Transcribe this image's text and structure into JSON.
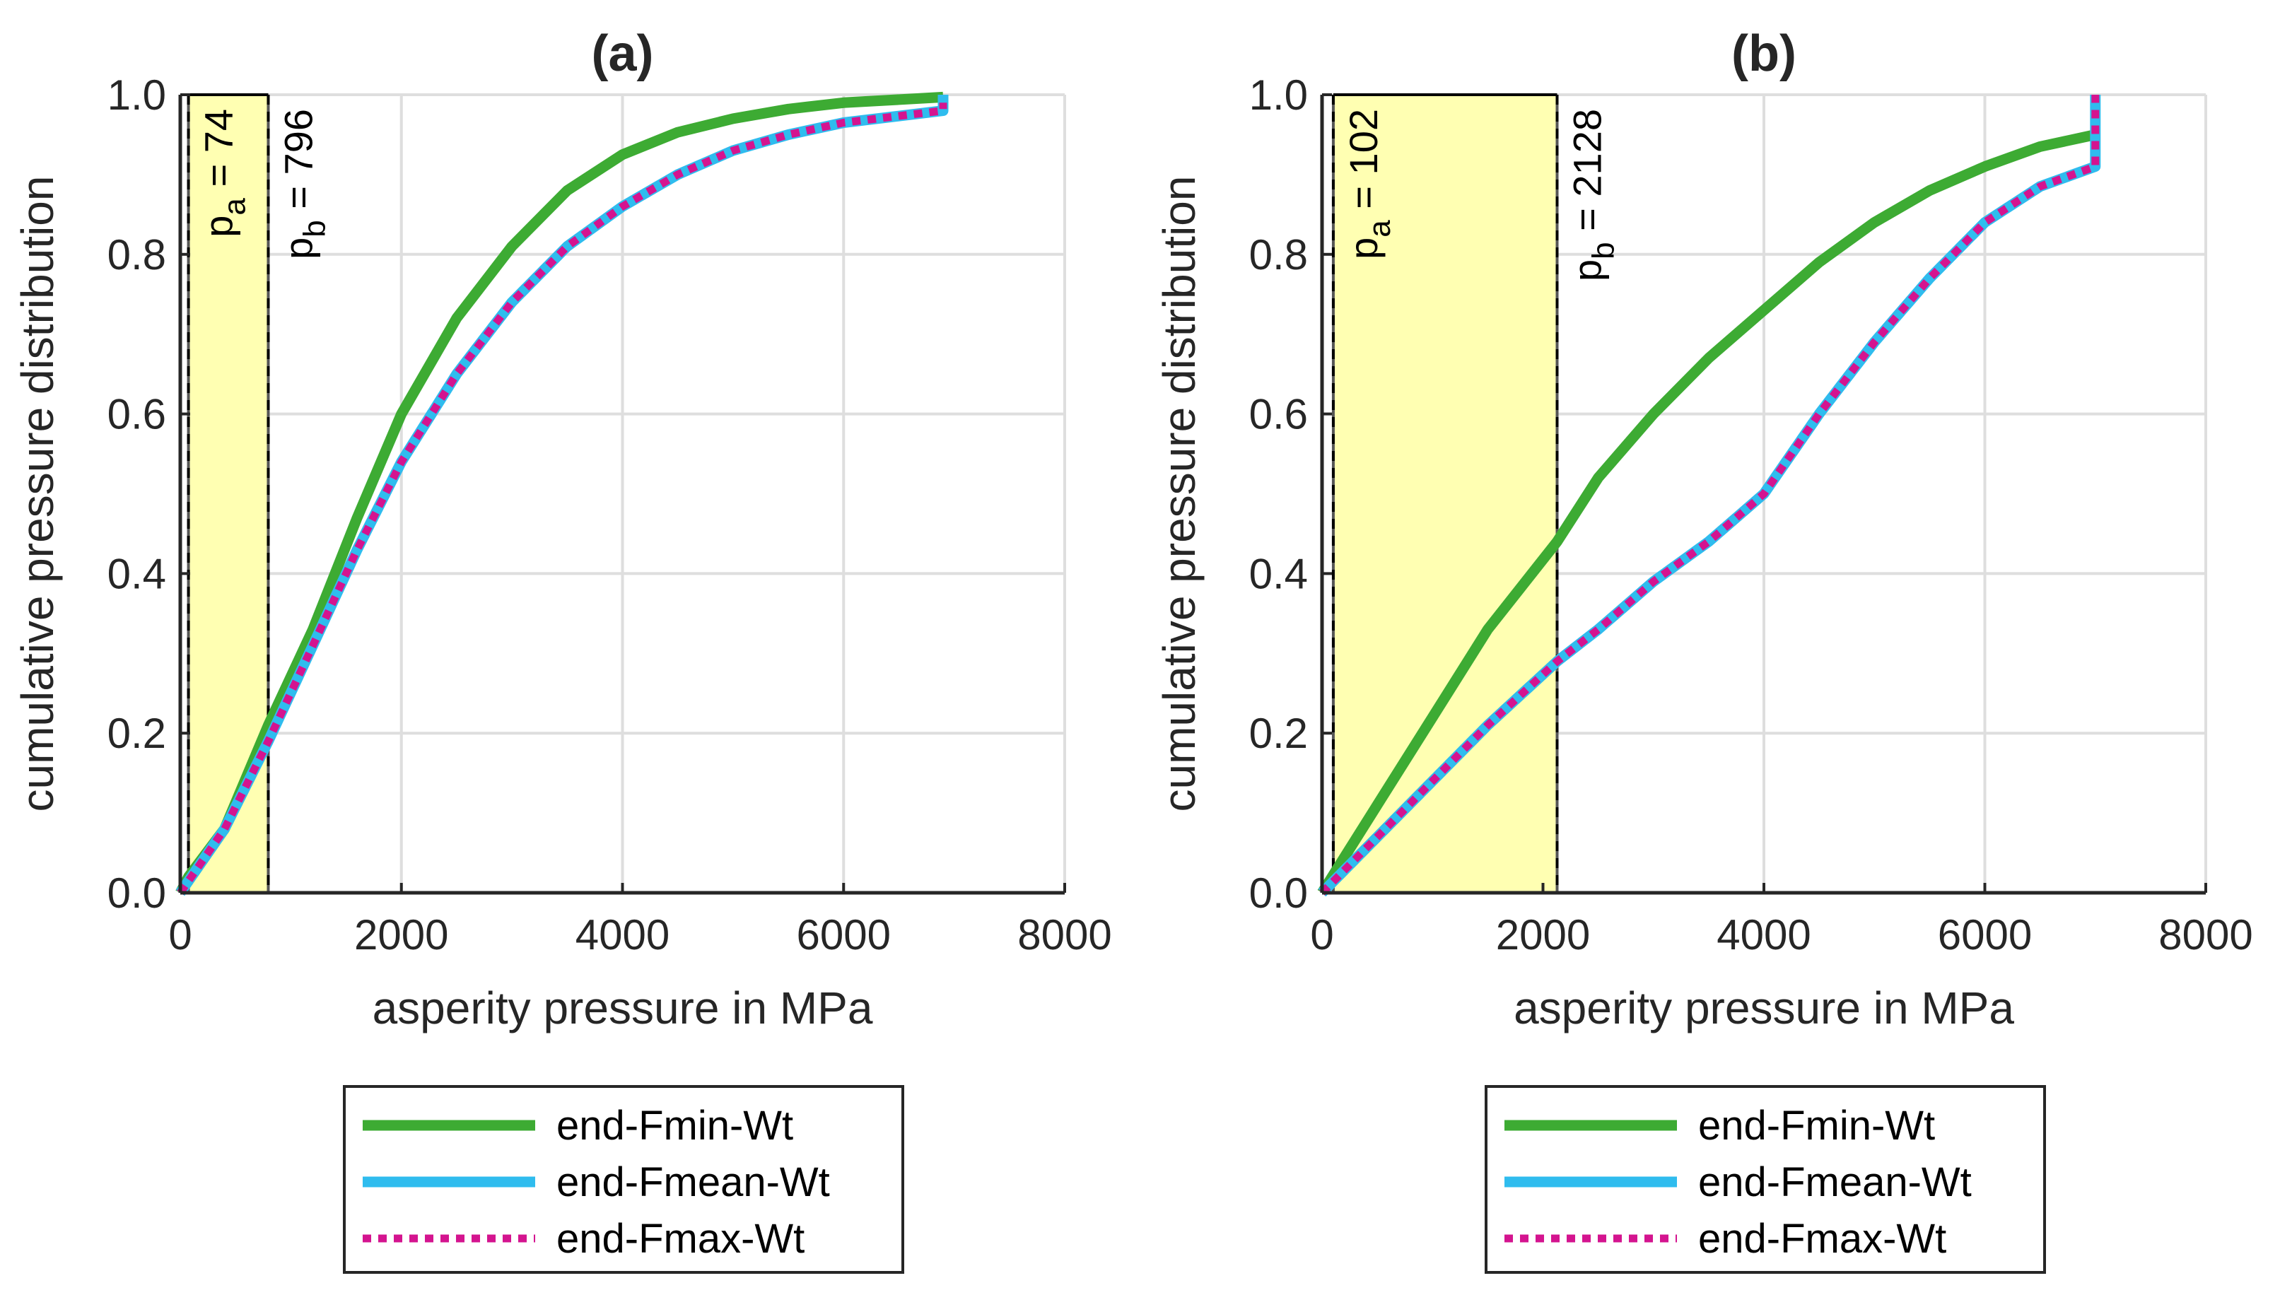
{
  "chart_data": [
    {
      "type": "line",
      "title": "(a)",
      "xlabel": "asperity pressure in MPa",
      "ylabel": "cumulative pressure distribution",
      "xlim": [
        0,
        8000
      ],
      "ylim": [
        0,
        1
      ],
      "xticks": [
        "0",
        "2000",
        "4000",
        "6000",
        "8000"
      ],
      "yticks": [
        "0.0",
        "0.2",
        "0.4",
        "0.6",
        "0.8",
        "1.0"
      ],
      "grid": true,
      "shaded_region": [
        74,
        796
      ],
      "annotations": {
        "pa_sym": "p",
        "pa_sub": "a",
        "pa_text": " = 74",
        "pb_sym": "p",
        "pb_sub": "b",
        "pb_text": " = 796"
      },
      "legend_position": "below",
      "series": [
        {
          "name": "end-Fmin-Wt",
          "color": "#3dab33",
          "style": "solid",
          "x": [
            0,
            74,
            400,
            796,
            1200,
            1600,
            2000,
            2500,
            3000,
            3500,
            4000,
            4500,
            5000,
            5500,
            6000,
            6900
          ],
          "y": [
            0,
            0.02,
            0.08,
            0.21,
            0.33,
            0.47,
            0.6,
            0.72,
            0.81,
            0.88,
            0.925,
            0.953,
            0.97,
            0.982,
            0.99,
            0.997
          ]
        },
        {
          "name": "end-Fmean-Wt",
          "color": "#2fbcee",
          "style": "solid",
          "x": [
            0,
            400,
            796,
            1200,
            1600,
            2000,
            2500,
            3000,
            3500,
            4000,
            4500,
            5000,
            5500,
            6000,
            6900,
            6900
          ],
          "y": [
            0,
            0.08,
            0.19,
            0.31,
            0.43,
            0.54,
            0.65,
            0.74,
            0.81,
            0.86,
            0.9,
            0.93,
            0.95,
            0.965,
            0.98,
            1.0
          ]
        },
        {
          "name": "end-Fmax-Wt",
          "color": "#d4148f",
          "style": "dotted",
          "x": [
            0,
            400,
            796,
            1200,
            1600,
            2000,
            2500,
            3000,
            3500,
            4000,
            4500,
            5000,
            5500,
            6000,
            6900,
            6900
          ],
          "y": [
            0,
            0.08,
            0.19,
            0.31,
            0.43,
            0.54,
            0.65,
            0.74,
            0.81,
            0.86,
            0.9,
            0.93,
            0.95,
            0.965,
            0.98,
            0.99
          ]
        }
      ]
    },
    {
      "type": "line",
      "title": "(b)",
      "xlabel": "asperity pressure in MPa",
      "ylabel": "cumulative pressure distribution",
      "xlim": [
        0,
        8000
      ],
      "ylim": [
        0,
        1
      ],
      "xticks": [
        "0",
        "2000",
        "4000",
        "6000",
        "8000"
      ],
      "yticks": [
        "0.0",
        "0.2",
        "0.4",
        "0.6",
        "0.8",
        "1.0"
      ],
      "grid": true,
      "shaded_region": [
        102,
        2128
      ],
      "annotations": {
        "pa_sym": "p",
        "pa_sub": "a",
        "pa_text": " = 102",
        "pb_sym": "p",
        "pb_sub": "b",
        "pb_text": " = 2128"
      },
      "legend_position": "below",
      "series": [
        {
          "name": "end-Fmin-Wt",
          "color": "#3dab33",
          "style": "solid",
          "x": [
            0,
            500,
            1000,
            1500,
            2128,
            2500,
            3000,
            3500,
            4000,
            4500,
            5000,
            5500,
            6000,
            6500,
            7000
          ],
          "y": [
            0,
            0.11,
            0.22,
            0.33,
            0.44,
            0.52,
            0.6,
            0.67,
            0.73,
            0.79,
            0.84,
            0.88,
            0.91,
            0.935,
            0.95
          ]
        },
        {
          "name": "end-Fmean-Wt",
          "color": "#2fbcee",
          "style": "solid",
          "x": [
            0,
            500,
            1000,
            1500,
            2128,
            2500,
            3000,
            3500,
            4000,
            4500,
            5000,
            5500,
            6000,
            6500,
            7000,
            7000
          ],
          "y": [
            0,
            0.07,
            0.14,
            0.21,
            0.29,
            0.33,
            0.39,
            0.44,
            0.5,
            0.6,
            0.69,
            0.77,
            0.84,
            0.885,
            0.91,
            1.0
          ]
        },
        {
          "name": "end-Fmax-Wt",
          "color": "#d4148f",
          "style": "dotted",
          "x": [
            0,
            500,
            1000,
            1500,
            2128,
            2500,
            3000,
            3500,
            4000,
            4500,
            5000,
            5500,
            6000,
            6500,
            7000,
            7000
          ],
          "y": [
            0,
            0.07,
            0.14,
            0.21,
            0.29,
            0.33,
            0.39,
            0.44,
            0.5,
            0.6,
            0.69,
            0.77,
            0.84,
            0.885,
            0.91,
            1.0
          ]
        }
      ]
    }
  ]
}
